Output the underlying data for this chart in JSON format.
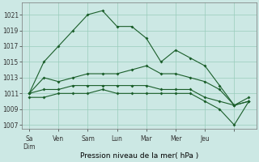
{
  "xlabel": "Pression niveau de la mer( hPa )",
  "ylim": [
    1006.5,
    1022.5
  ],
  "yticks": [
    1007,
    1009,
    1011,
    1013,
    1015,
    1017,
    1019,
    1021
  ],
  "bg_color": "#cce8e4",
  "grid_color": "#99ccbb",
  "line_color": "#1a5e2a",
  "line1": [
    1011.0,
    1015.0,
    1017.0,
    1019.0,
    1021.0,
    1021.5,
    1019.5,
    1019.5,
    1018.0,
    1015.0,
    1016.5,
    1015.5,
    1014.5,
    1012.0,
    1009.5,
    1010.0
  ],
  "line2": [
    1011.0,
    1013.0,
    1012.5,
    1013.0,
    1013.5,
    1013.5,
    1013.5,
    1014.0,
    1014.5,
    1013.5,
    1013.5,
    1013.0,
    1012.5,
    1011.5,
    1009.5,
    1010.5
  ],
  "line3": [
    1011.0,
    1011.5,
    1011.5,
    1012.0,
    1012.0,
    1012.0,
    1012.0,
    1012.0,
    1012.0,
    1011.5,
    1011.5,
    1011.5,
    1010.5,
    1010.0,
    1009.5,
    1010.0
  ],
  "line4": [
    1010.5,
    1010.5,
    1011.0,
    1011.0,
    1011.0,
    1011.5,
    1011.0,
    1011.0,
    1011.0,
    1011.0,
    1011.0,
    1011.0,
    1010.0,
    1009.0,
    1007.0,
    1010.0
  ],
  "n_points": 16,
  "xtick_pos": [
    0,
    2,
    4,
    6,
    8,
    10,
    12,
    14
  ],
  "xtick_labels": [
    "SaDim",
    "Ven",
    "Sam",
    "Lun",
    "Mar",
    "Mer",
    "Jeu",
    ""
  ]
}
